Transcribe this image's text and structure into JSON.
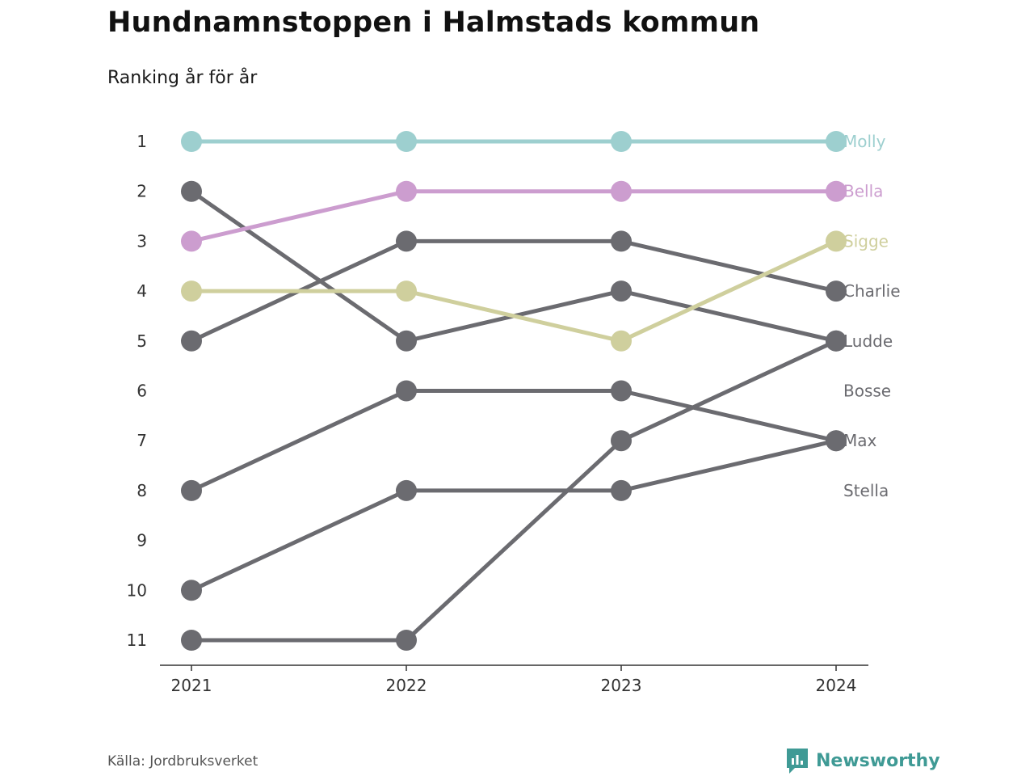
{
  "header": {
    "title": "Hundnamnstoppen i Halmstads kommun",
    "subtitle": "Ranking år för år"
  },
  "footer": {
    "source": "Källa: Jordbruksverket",
    "brand": "Newsworthy",
    "brand_icon": "bar-chart-speech-bubble-icon"
  },
  "colors": {
    "background": "#ffffff",
    "default_line": "#6b6b70",
    "axis": "#333333",
    "tick_text": "#333333",
    "brand": "#3f9a95"
  },
  "chart_data": {
    "type": "line",
    "chart_subtype": "bump",
    "title": "Hundnamnstoppen i Halmstads kommun",
    "subtitle": "Ranking år för år",
    "xlabel": "",
    "ylabel": "",
    "x": [
      "2021",
      "2022",
      "2023",
      "2024"
    ],
    "y_ticks": [
      1,
      2,
      3,
      4,
      5,
      6,
      7,
      8,
      9,
      10,
      11
    ],
    "ylim": [
      11,
      1
    ],
    "y_reversed": true,
    "grid": false,
    "legend": "direct labels right",
    "end_labels": [
      {
        "text": "Molly",
        "rank": 1,
        "color": "#9dcfcf"
      },
      {
        "text": "Bella",
        "rank": 2,
        "color": "#cc9dcf"
      },
      {
        "text": "Sigge",
        "rank": 3,
        "color": "#cfcf9d"
      },
      {
        "text": "Charlie",
        "rank": 4,
        "color": "#6b6b70"
      },
      {
        "text": "Ludde",
        "rank": 5,
        "color": "#6b6b70"
      },
      {
        "text": "Bosse",
        "rank": 6,
        "color": "#6b6b70"
      },
      {
        "text": "Max",
        "rank": 7,
        "color": "#6b6b70"
      },
      {
        "text": "Stella",
        "rank": 8,
        "color": "#6b6b70"
      }
    ],
    "series": [
      {
        "values": [
          2,
          5,
          4,
          5
        ],
        "color": "#6b6b70"
      },
      {
        "values": [
          5,
          3,
          3,
          4
        ],
        "color": "#6b6b70"
      },
      {
        "values": [
          8,
          6,
          6,
          7
        ],
        "color": "#6b6b70"
      },
      {
        "values": [
          10,
          8,
          8,
          7
        ],
        "color": "#6b6b70"
      },
      {
        "values": [
          11,
          11,
          7,
          5
        ],
        "color": "#6b6b70"
      },
      {
        "values": [
          4,
          4,
          5,
          3
        ],
        "color": "#cfcf9d"
      },
      {
        "values": [
          3,
          2,
          2,
          2
        ],
        "color": "#cc9dcf"
      },
      {
        "values": [
          1,
          1,
          1,
          1
        ],
        "color": "#9dcfcf"
      }
    ]
  }
}
